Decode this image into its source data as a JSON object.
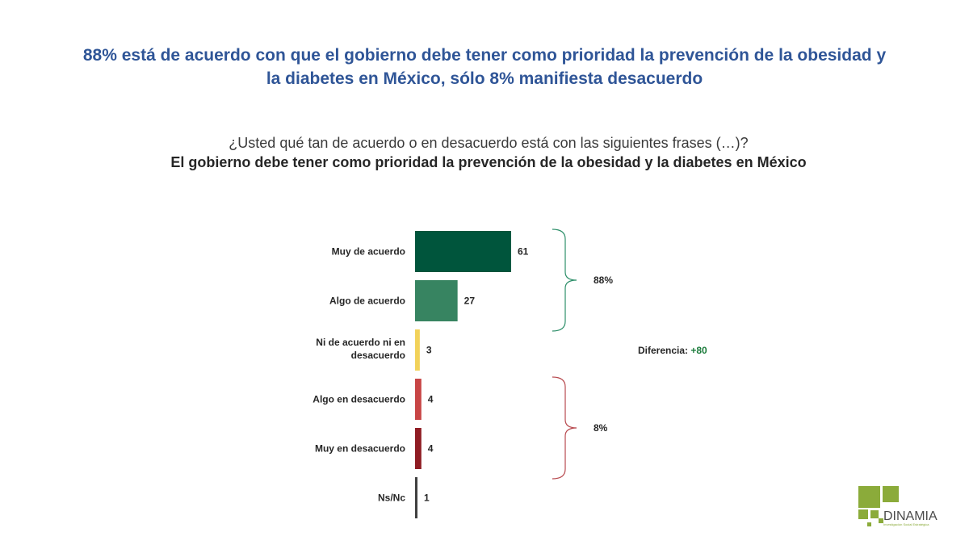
{
  "header": {
    "title": "88% está de acuerdo con que el gobierno debe tener como prioridad la prevención de la obesidad y la diabetes en México, sólo 8% manifiesta desacuerdo",
    "question": "¿Usted qué tan de acuerdo o en desacuerdo está con las siguientes frases (…)?",
    "statement": "El gobierno debe tener como prioridad la prevención de la obesidad y la diabetes en México"
  },
  "chart_data": {
    "type": "bar",
    "orientation": "horizontal",
    "categories": [
      "Muy de acuerdo",
      "Algo de acuerdo",
      "Ni de acuerdo ni en desacuerdo",
      "Algo en desacuerdo",
      "Muy en desacuerdo",
      "Ns/Nc"
    ],
    "values": [
      61,
      27,
      3,
      4,
      4,
      1
    ],
    "colors": [
      "#00553c",
      "#378461",
      "#f2d25a",
      "#c84545",
      "#8f1c23",
      "#404040"
    ],
    "groups": [
      {
        "label": "88%",
        "members": [
          0,
          1
        ],
        "color": "#2e8f6a"
      },
      {
        "label": "8%",
        "members": [
          3,
          4
        ],
        "color": "#b84a4f"
      }
    ],
    "annotation": {
      "label": "Diferencia:",
      "value": "+80",
      "value_color": "#1a7a3a"
    },
    "grid": false,
    "legend": "none"
  },
  "logo": {
    "name": "DINAMIA",
    "tagline": "Investigación Social Estratégica",
    "color": "#8bab3a"
  }
}
